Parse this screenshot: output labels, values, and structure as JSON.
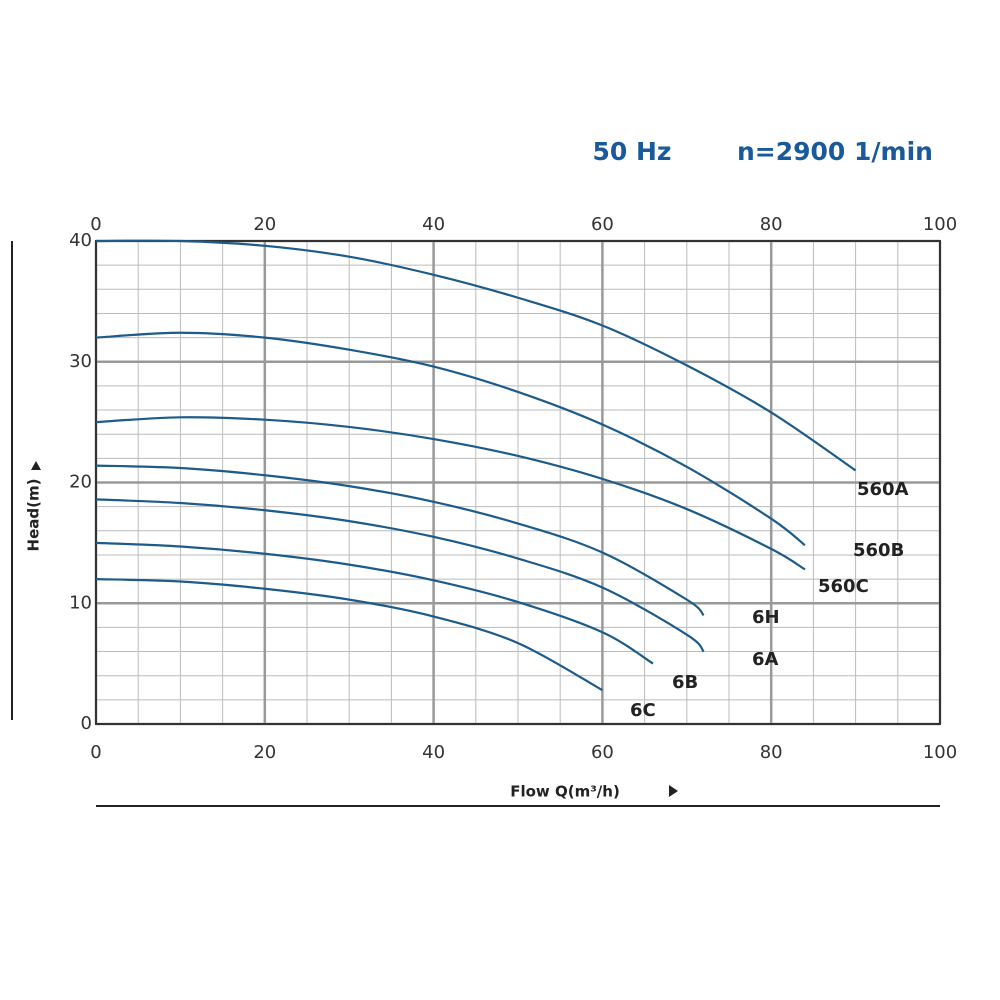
{
  "chart_data": {
    "type": "line",
    "title": "50 Hz",
    "subtitle": "n=2900 1/min",
    "xlabel": "Flow Q(m³/h)",
    "ylabel": "Head(m)",
    "xlim": [
      0,
      100
    ],
    "xticks": [
      0,
      20,
      40,
      60,
      80,
      100
    ],
    "ylim": [
      0,
      40
    ],
    "yticks": [
      0,
      10,
      20,
      30,
      40
    ],
    "grid": true,
    "series": [
      {
        "name": "560A",
        "color": "#1d5b8a",
        "x": [
          0,
          10,
          20,
          30,
          40,
          50,
          60,
          70,
          80,
          90
        ],
        "values": [
          40,
          40,
          39.6,
          38.7,
          37.2,
          35.3,
          33,
          29.7,
          25.8,
          21
        ]
      },
      {
        "name": "560B",
        "color": "#1d5b8a",
        "x": [
          0,
          10,
          20,
          30,
          40,
          50,
          60,
          70,
          80,
          84
        ],
        "values": [
          32,
          32.4,
          32,
          31,
          29.6,
          27.5,
          24.8,
          21.3,
          17,
          14.8
        ]
      },
      {
        "name": "560C",
        "color": "#1d5b8a",
        "x": [
          0,
          10,
          20,
          30,
          40,
          50,
          60,
          70,
          80,
          84
        ],
        "values": [
          25,
          25.4,
          25.2,
          24.6,
          23.6,
          22.2,
          20.3,
          17.8,
          14.5,
          12.8
        ]
      },
      {
        "name": "6H",
        "color": "#1d5b8a",
        "x": [
          0,
          10,
          20,
          30,
          40,
          50,
          60,
          70,
          72
        ],
        "values": [
          21.4,
          21.2,
          20.6,
          19.7,
          18.4,
          16.6,
          14.2,
          10.3,
          9
        ]
      },
      {
        "name": "6A",
        "color": "#1d5b8a",
        "x": [
          0,
          10,
          20,
          30,
          40,
          50,
          60,
          70,
          72
        ],
        "values": [
          18.6,
          18.3,
          17.7,
          16.8,
          15.5,
          13.7,
          11.3,
          7.4,
          6
        ]
      },
      {
        "name": "6B",
        "color": "#1d5b8a",
        "x": [
          0,
          10,
          20,
          30,
          40,
          50,
          60,
          66
        ],
        "values": [
          15,
          14.7,
          14.1,
          13.2,
          11.9,
          10.1,
          7.6,
          5
        ]
      },
      {
        "name": "6C",
        "color": "#1d5b8a",
        "x": [
          0,
          10,
          20,
          30,
          40,
          50,
          60
        ],
        "values": [
          12,
          11.8,
          11.2,
          10.3,
          8.9,
          6.7,
          2.8
        ]
      }
    ]
  }
}
